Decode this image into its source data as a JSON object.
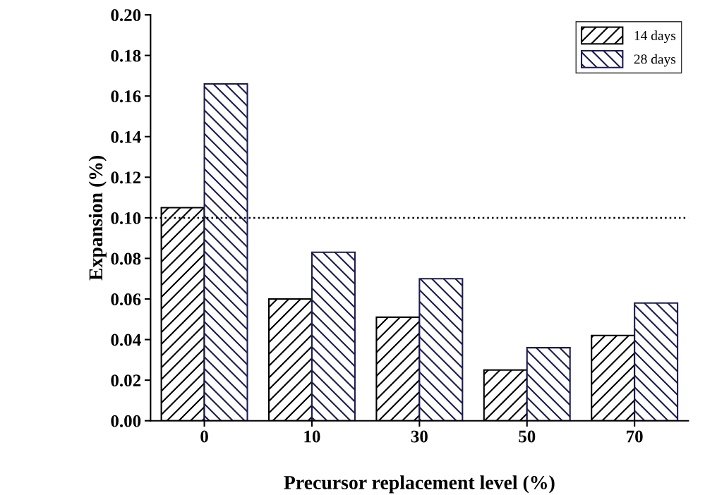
{
  "chart_data": {
    "type": "bar",
    "xlabel": "Precursor replacement level (%)",
    "ylabel": "Expansion (%)",
    "categories": [
      "0",
      "10",
      "30",
      "50",
      "70"
    ],
    "series": [
      {
        "name": "14 days",
        "color": "#000000",
        "values": [
          0.105,
          0.06,
          0.051,
          0.025,
          0.042
        ]
      },
      {
        "name": "28 days",
        "color": "#1c1c50",
        "values": [
          0.166,
          0.083,
          0.07,
          0.036,
          0.058
        ]
      }
    ],
    "ylim": [
      0,
      0.2
    ],
    "yticks": [
      {
        "value": 0,
        "label": "0.00"
      },
      {
        "value": 0.02,
        "label": "0.02"
      },
      {
        "value": 0.04,
        "label": "0.04"
      },
      {
        "value": 0.06,
        "label": "0.06"
      },
      {
        "value": 0.08,
        "label": "0.08"
      },
      {
        "value": 0.1,
        "label": "0.10"
      },
      {
        "value": 0.12,
        "label": "0.12"
      },
      {
        "value": 0.14,
        "label": "0.14"
      },
      {
        "value": 0.16,
        "label": "0.16"
      },
      {
        "value": 0.18,
        "label": "0.18"
      },
      {
        "value": 0.2,
        "label": "0.20"
      }
    ],
    "ref_lines": [
      {
        "axis": "y",
        "value": 0.1,
        "line_style": "dotted",
        "color": "#000000"
      }
    ],
    "legend": "top right",
    "grid": false
  }
}
